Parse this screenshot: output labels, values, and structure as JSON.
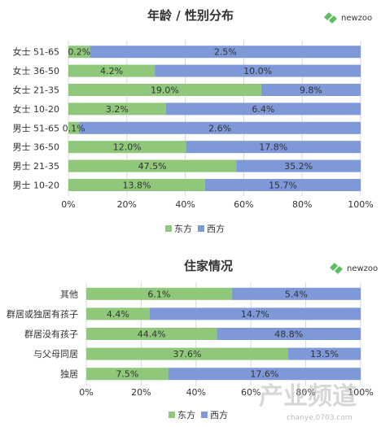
{
  "colors": {
    "east": "#8fc87a",
    "west": "#7e98d8",
    "logo": "#5cbf64",
    "grid": "#d9d9d9"
  },
  "brand": {
    "logo_text": "newzoo",
    "logo_icon": "newzoo-logo-icon"
  },
  "watermark": {
    "text": "产业频道",
    "url": "chanye.0703.com"
  },
  "chart_data": [
    {
      "type": "bar",
      "orientation": "horizontal",
      "title": "年龄 / 性别分布",
      "categories": [
        "女士 51-65",
        "女士 36-50",
        "女士 21-35",
        "女士 10-20",
        "男士 51-65",
        "男士 36-50",
        "男士 21-35",
        "男士 10-20"
      ],
      "series": [
        {
          "name": "东方",
          "values": [
            0.2,
            4.2,
            19.0,
            3.2,
            0.1,
            12.0,
            47.5,
            13.8
          ],
          "labels": [
            "0.2%",
            "4.2%",
            "19.0%",
            "3.2%",
            "0.1%",
            "12.0%",
            "47.5%",
            "13.8%"
          ]
        },
        {
          "name": "西方",
          "values": [
            2.5,
            10.0,
            9.8,
            6.4,
            2.6,
            17.8,
            35.2,
            15.7
          ],
          "labels": [
            "2.5%",
            "10.0%",
            "9.8%",
            "6.4%",
            "2.6%",
            "17.8%",
            "35.2%",
            "15.7%"
          ]
        }
      ],
      "stacked": "percent",
      "xlim": [
        0,
        100
      ],
      "xticks": [
        "0%",
        "20%",
        "40%",
        "60%",
        "80%",
        "100%"
      ],
      "grid": true,
      "legend": "bottom"
    },
    {
      "type": "bar",
      "orientation": "horizontal",
      "title": "住家情况",
      "categories": [
        "其他",
        "群居或独居有孩子",
        "群居没有孩子",
        "与父母同居",
        "独居"
      ],
      "series": [
        {
          "name": "东方",
          "values": [
            6.1,
            4.4,
            44.4,
            37.6,
            7.5
          ],
          "labels": [
            "6.1%",
            "4.4%",
            "44.4%",
            "37.6%",
            "7.5%"
          ]
        },
        {
          "name": "西方",
          "values": [
            5.4,
            14.7,
            48.8,
            13.5,
            17.6
          ],
          "labels": [
            "5.4%",
            "14.7%",
            "48.8%",
            "13.5%",
            "17.6%"
          ]
        }
      ],
      "stacked": "percent",
      "xlim": [
        0,
        100
      ],
      "xticks": [
        "0%",
        "20%",
        "40%",
        "60%",
        "80%",
        "100%"
      ],
      "grid": true,
      "legend": "bottom"
    }
  ]
}
